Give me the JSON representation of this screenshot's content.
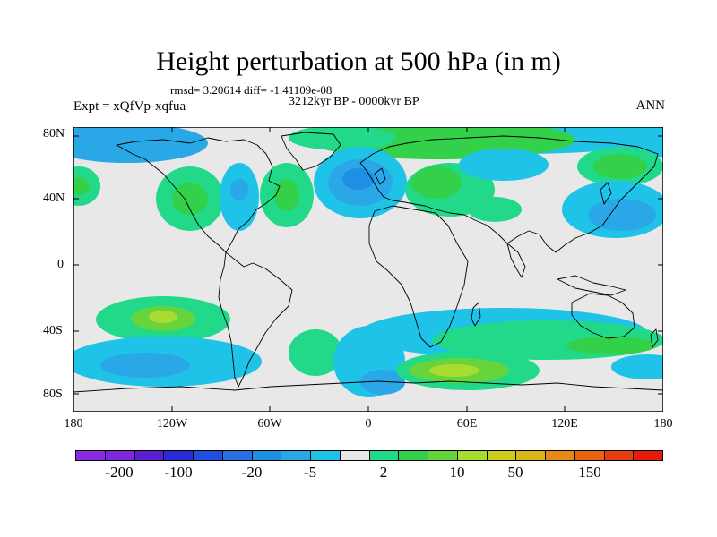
{
  "title": "Height perturbation at 500 hPa (in m)",
  "stats": "rmsd= 3.20614  diff= -1.41109e-08",
  "period": "3212kyr BP - 0000kyr BP",
  "experiment": "Expt = xQfVp-xqfua",
  "season": "ANN",
  "lat_labels": [
    "80N",
    "40N",
    "0",
    "40S",
    "80S"
  ],
  "lon_labels": [
    "180",
    "120W",
    "60W",
    "0",
    "60E",
    "120E",
    "180"
  ],
  "colorbar": {
    "colors": [
      "#8a2be2",
      "#7a2ad8",
      "#5a1fd0",
      "#2a2bd4",
      "#1f4ee0",
      "#2c6fe0",
      "#1f8fe3",
      "#2aa7e6",
      "#1fc3e8",
      "#e8e8e8",
      "#22d98a",
      "#33d04a",
      "#66d43a",
      "#a8dc30",
      "#cccc20",
      "#d9b51c",
      "#e58a18",
      "#e86414",
      "#e63c10",
      "#e81a0c"
    ],
    "labels": [
      "-200",
      "-100",
      "-20",
      "-5",
      "2",
      "10",
      "50",
      "150"
    ]
  }
}
